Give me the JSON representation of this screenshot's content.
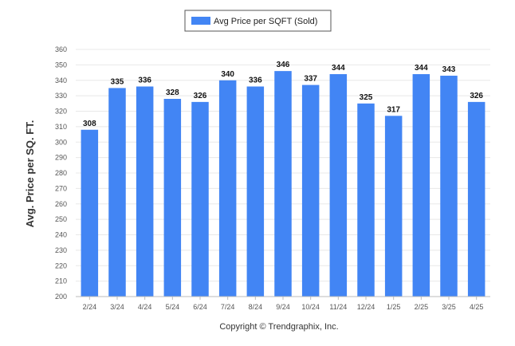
{
  "legend": {
    "label": "Avg Price per SQFT (Sold)"
  },
  "copyright": "Copyright © Trendgraphix, Inc.",
  "colors": {
    "bar": "#4285f4",
    "grid": "#e8e8e8",
    "axis": "#bbbbbb"
  },
  "chart_data": {
    "type": "bar",
    "categories": [
      "2/24",
      "3/24",
      "4/24",
      "5/24",
      "6/24",
      "7/24",
      "8/24",
      "9/24",
      "10/24",
      "11/24",
      "12/24",
      "1/25",
      "2/25",
      "3/25",
      "4/25"
    ],
    "series": [
      {
        "name": "Avg Price per SQFT (Sold)",
        "values": [
          308,
          335,
          336,
          328,
          326,
          340,
          336,
          346,
          337,
          344,
          325,
          317,
          344,
          343,
          326
        ]
      }
    ],
    "ylabel": "Avg. Price per SQ. FT.",
    "ylim": [
      200,
      360
    ],
    "yticks": [
      200,
      210,
      220,
      230,
      240,
      250,
      260,
      270,
      280,
      290,
      300,
      310,
      320,
      330,
      340,
      350,
      360
    ],
    "grid": true,
    "legend_position": "top-center",
    "data_labels": true
  }
}
